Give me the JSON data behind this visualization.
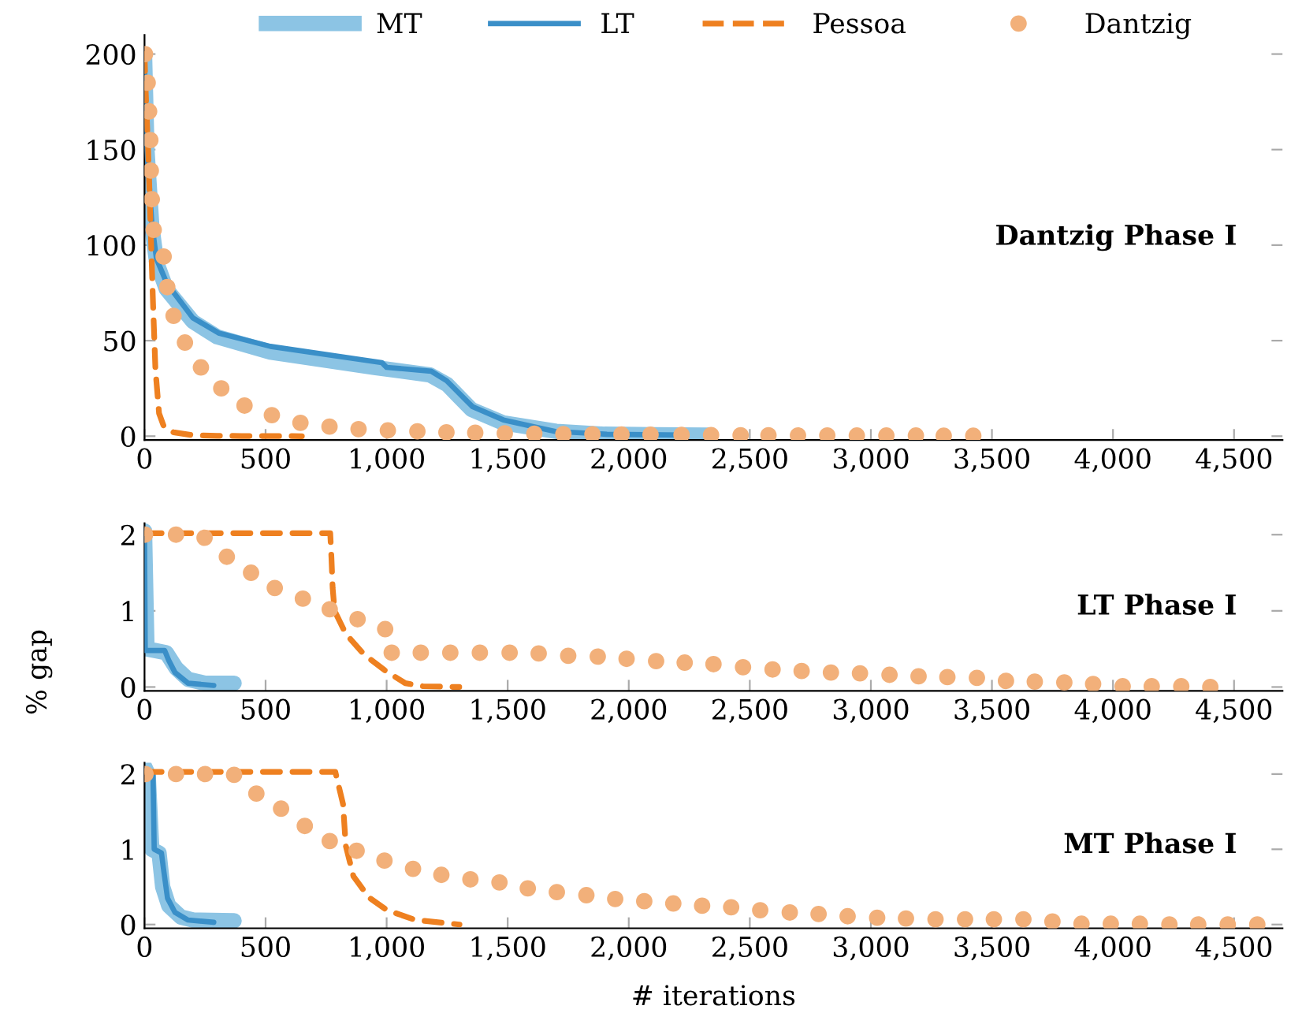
{
  "chart_data": [
    {
      "type": "line",
      "legend": "top",
      "annotations": [
        "Dantzig Phase I"
      ],
      "xlim": [
        0,
        4700
      ],
      "ylim": [
        -2,
        210
      ],
      "xticks": [
        0,
        500,
        {
          "value": 1000,
          "label": "1,000"
        },
        {
          "value": 1500,
          "label": "1,500"
        },
        {
          "value": 2000,
          "label": "2,000"
        },
        {
          "value": 2500,
          "label": "2,500"
        },
        {
          "value": 3000,
          "label": "3,000"
        },
        {
          "value": 3500,
          "label": "3,500"
        },
        {
          "value": 4000,
          "label": "4,000"
        },
        {
          "value": 4500,
          "label": "4,500"
        }
      ],
      "yticks": [
        0,
        50,
        100,
        150,
        200
      ],
      "series": [
        {
          "name": "MT",
          "color": "#8cc4e4",
          "x": [
            0,
            10,
            30,
            50,
            90,
            200,
            300,
            520,
            950,
            1180,
            1250,
            1350,
            1480,
            1700,
            1900,
            2100,
            2330
          ],
          "values": [
            200,
            150,
            110,
            91,
            77,
            60,
            52,
            44,
            36,
            32,
            27,
            14,
            7,
            2.5,
            1,
            0.7,
            0.5
          ]
        },
        {
          "name": "LT",
          "color": "#3a8fc8",
          "x": [
            0,
            10,
            30,
            49,
            92,
            199,
            306,
            520,
            980,
            1000,
            1184,
            1248,
            1354,
            1482,
            1696,
            1910,
            2230
          ],
          "values": [
            195,
            150,
            112,
            93,
            80,
            62,
            54,
            47,
            38.5,
            36,
            34,
            29,
            15.5,
            8.5,
            2.5,
            1,
            0.6
          ]
        },
        {
          "name": "Pessoa",
          "color": "#ee8020",
          "line_style": "dashed",
          "x": [
            0,
            5,
            15,
            25,
            35,
            45,
            60,
            80,
            120,
            200,
            300,
            400,
            650
          ],
          "values": [
            200,
            180,
            150,
            110,
            70,
            35,
            12,
            5,
            2,
            0.5,
            0.2,
            0.1,
            0
          ]
        },
        {
          "name": "Dantzig",
          "color": "#f2b07a",
          "type": "scatter",
          "marker": "circle",
          "x": [
            2,
            13,
            19,
            24,
            26,
            30,
            38,
            79,
            94,
            120,
            167,
            233,
            317,
            413,
            526,
            644,
            764,
            884,
            1005,
            1127,
            1247,
            1366,
            1488,
            1610,
            1730,
            1850,
            1970,
            2090,
            2218,
            2340,
            2462,
            2577,
            2699,
            2820,
            2942,
            3064,
            3186,
            3301,
            3423
          ],
          "values": [
            200,
            185,
            170,
            155,
            139,
            124,
            108,
            94,
            78,
            63,
            49,
            36,
            25,
            16,
            11,
            7,
            5,
            3.7,
            3,
            2.5,
            2,
            1.8,
            1.5,
            1.3,
            1.1,
            1,
            0.9,
            0.8,
            0.7,
            0.6,
            0.5,
            0.5,
            0.4,
            0.4,
            0.3,
            0.3,
            0.3,
            0.2,
            0.2
          ]
        }
      ]
    },
    {
      "type": "line",
      "ylabel": "% gap",
      "annotations": [
        "LT Phase I"
      ],
      "xlim": [
        0,
        4700
      ],
      "ylim": [
        -0.05,
        2.15
      ],
      "xticks": [
        0,
        500,
        {
          "value": 1000,
          "label": "1,000"
        },
        {
          "value": 1500,
          "label": "1,500"
        },
        {
          "value": 2000,
          "label": "2,000"
        },
        {
          "value": 2500,
          "label": "2,500"
        },
        {
          "value": 3000,
          "label": "3,000"
        },
        {
          "value": 3500,
          "label": "3,500"
        },
        {
          "value": 4000,
          "label": "4,000"
        },
        {
          "value": 4500,
          "label": "4,500"
        }
      ],
      "yticks": [
        0,
        1,
        2
      ],
      "series": [
        {
          "color": "#8cc4e4",
          "x": [
            0,
            10,
            90,
            130,
            180,
            250,
            370
          ],
          "values": [
            2.05,
            0.5,
            0.45,
            0.25,
            0.1,
            0.05,
            0.05
          ]
        },
        {
          "color": "#3a8fc8",
          "x": [
            0,
            3,
            83,
            100,
            126,
            180,
            286
          ],
          "values": [
            2.05,
            0.48,
            0.48,
            0.35,
            0.19,
            0.05,
            0.02
          ]
        },
        {
          "color": "#ee8020",
          "line_style": "dashed",
          "x": [
            0,
            767,
            772,
            777,
            785,
            831,
            906,
            992,
            1077,
            1150,
            1300
          ],
          "values": [
            2.02,
            2.02,
            1.7,
            1.3,
            1.0,
            0.7,
            0.43,
            0.22,
            0.05,
            0.01,
            0
          ]
        },
        {
          "color": "#f2b07a",
          "type": "scatter",
          "marker": "circle",
          "x": [
            2,
            130,
            248,
            340,
            440,
            538,
            654,
            765,
            880,
            994,
            1021,
            1141,
            1263,
            1385,
            1508,
            1628,
            1750,
            1872,
            1991,
            2113,
            2231,
            2350,
            2472,
            2594,
            2714,
            2835,
            2955,
            3077,
            3197,
            3316,
            3438,
            3558,
            3677,
            3799,
            3918,
            4040,
            4160,
            4282,
            4402
          ],
          "values": [
            2.0,
            2.0,
            1.96,
            1.71,
            1.5,
            1.3,
            1.16,
            1.02,
            0.89,
            0.76,
            0.45,
            0.45,
            0.45,
            0.45,
            0.45,
            0.44,
            0.41,
            0.4,
            0.37,
            0.34,
            0.32,
            0.3,
            0.26,
            0.23,
            0.21,
            0.19,
            0.18,
            0.16,
            0.14,
            0.13,
            0.12,
            0.08,
            0.07,
            0.06,
            0.04,
            0.01,
            0.01,
            0.01,
            0
          ]
        }
      ]
    },
    {
      "type": "line",
      "xlabel": "# iterations",
      "annotations": [
        "MT Phase I"
      ],
      "xlim": [
        0,
        4700
      ],
      "ylim": [
        -0.05,
        2.15
      ],
      "xticks": [
        0,
        500,
        {
          "value": 1000,
          "label": "1,000"
        },
        {
          "value": 1500,
          "label": "1,500"
        },
        {
          "value": 2000,
          "label": "2,000"
        },
        {
          "value": 2500,
          "label": "2,500"
        },
        {
          "value": 3000,
          "label": "3,000"
        },
        {
          "value": 3500,
          "label": "3,500"
        },
        {
          "value": 4000,
          "label": "4,000"
        },
        {
          "value": 4500,
          "label": "4,500"
        }
      ],
      "yticks": [
        0,
        1,
        2
      ],
      "series": [
        {
          "color": "#8cc4e4",
          "x": [
            0,
            15,
            30,
            60,
            75,
            100,
            150,
            200,
            370
          ],
          "values": [
            2.1,
            2.0,
            1.0,
            0.95,
            0.5,
            0.25,
            0.1,
            0.06,
            0.05
          ]
        },
        {
          "color": "#3a8fc8",
          "x": [
            0,
            35,
            40,
            70,
            80,
            95,
            126,
            180,
            286
          ],
          "values": [
            2.05,
            2.0,
            1.0,
            0.95,
            0.7,
            0.35,
            0.16,
            0.06,
            0.03
          ]
        },
        {
          "color": "#ee8020",
          "line_style": "dashed",
          "x": [
            0,
            788,
            820,
            831,
            863,
            927,
            1002,
            1120,
            1301
          ],
          "values": [
            2.03,
            2.03,
            1.6,
            1.05,
            0.64,
            0.36,
            0.19,
            0.06,
            0
          ]
        },
        {
          "color": "#f2b07a",
          "type": "scatter",
          "marker": "circle",
          "x": [
            4,
            130,
            250,
            370,
            462,
            564,
            662,
            765,
            876,
            991,
            1109,
            1226,
            1346,
            1466,
            1583,
            1703,
            1825,
            1944,
            2064,
            2184,
            2303,
            2423,
            2543,
            2665,
            2784,
            2904,
            3026,
            3145,
            3267,
            3389,
            3508,
            3630,
            3750,
            3870,
            3991,
            4111,
            4233,
            4352,
            4474,
            4596
          ],
          "values": [
            2.0,
            2.0,
            2.0,
            1.99,
            1.74,
            1.54,
            1.31,
            1.11,
            0.98,
            0.85,
            0.74,
            0.66,
            0.6,
            0.56,
            0.48,
            0.43,
            0.39,
            0.34,
            0.31,
            0.28,
            0.25,
            0.23,
            0.19,
            0.16,
            0.14,
            0.11,
            0.09,
            0.08,
            0.07,
            0.07,
            0.07,
            0.07,
            0.04,
            0.01,
            0.01,
            0.01,
            0,
            0,
            0,
            0
          ]
        }
      ]
    }
  ]
}
